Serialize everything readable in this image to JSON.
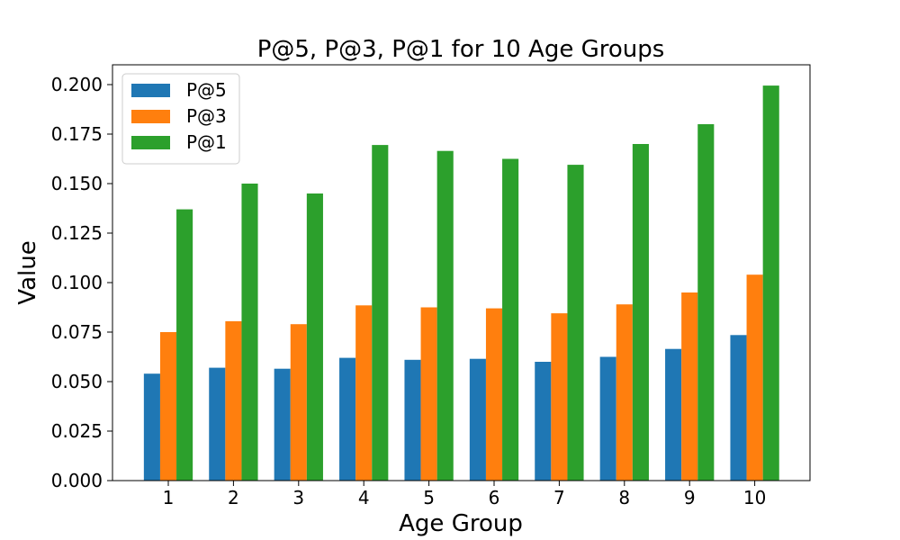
{
  "chart_data": {
    "type": "bar",
    "title": "P@5, P@3, P@1 for 10 Age Groups",
    "xlabel": "Age Group",
    "ylabel": "Value",
    "categories": [
      "1",
      "2",
      "3",
      "4",
      "5",
      "6",
      "7",
      "8",
      "9",
      "10"
    ],
    "ylim": [
      0,
      0.21
    ],
    "yticks": [
      "0.000",
      "0.025",
      "0.050",
      "0.075",
      "0.100",
      "0.125",
      "0.150",
      "0.175",
      "0.200"
    ],
    "grid": false,
    "legend_position": "top-left",
    "series": [
      {
        "name": "P@5",
        "color": "#1f77b4",
        "values": [
          0.054,
          0.057,
          0.0565,
          0.062,
          0.061,
          0.0615,
          0.06,
          0.0625,
          0.0665,
          0.0735
        ]
      },
      {
        "name": "P@3",
        "color": "#ff7f0e",
        "values": [
          0.075,
          0.0805,
          0.079,
          0.0885,
          0.0875,
          0.087,
          0.0845,
          0.089,
          0.095,
          0.104
        ]
      },
      {
        "name": "P@1",
        "color": "#2ca02c",
        "values": [
          0.137,
          0.15,
          0.145,
          0.1695,
          0.1665,
          0.1625,
          0.1595,
          0.17,
          0.18,
          0.1995
        ]
      }
    ]
  }
}
